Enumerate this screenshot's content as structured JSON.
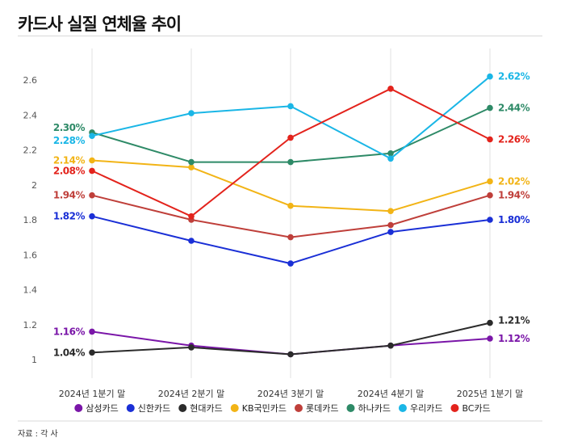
{
  "title": "카드사 실질 연체율 추이",
  "source": "자료 : 각 사",
  "chart_data": {
    "type": "line",
    "categories": [
      "2024년 1분기 말",
      "2024년 2분기 말",
      "2024년 3분기 말",
      "2024년 4분기 말",
      "2025년 1분기 말"
    ],
    "ylim": [
      1.0,
      2.6
    ],
    "yticks": [
      "1",
      "1.2",
      "1.4",
      "1.6",
      "1.8",
      "2",
      "2.2",
      "2.4",
      "2.6"
    ],
    "grid": "vertical",
    "legend_position": "bottom",
    "series": [
      {
        "name": "삼성카드",
        "color": "#7a16a8",
        "values": [
          1.16,
          1.08,
          1.03,
          1.08,
          1.12
        ],
        "first_label": "1.16%",
        "last_label": "1.12%"
      },
      {
        "name": "신한카드",
        "color": "#1a2fd6",
        "values": [
          1.82,
          1.68,
          1.55,
          1.73,
          1.8
        ],
        "first_label": "1.82%",
        "last_label": "1.80%"
      },
      {
        "name": "현대카드",
        "color": "#2b2b2b",
        "values": [
          1.04,
          1.07,
          1.03,
          1.08,
          1.21
        ],
        "first_label": "1.04%",
        "last_label": "1.21%"
      },
      {
        "name": "KB국민카드",
        "color": "#f2b416",
        "values": [
          2.14,
          2.1,
          1.88,
          1.85,
          2.02
        ],
        "first_label": "2.14%",
        "last_label": "2.02%"
      },
      {
        "name": "롯데카드",
        "color": "#bf3f3a",
        "values": [
          1.94,
          1.8,
          1.7,
          1.77,
          1.94
        ],
        "first_label": "1.94%",
        "last_label": "1.94%"
      },
      {
        "name": "하나카드",
        "color": "#2e8a67",
        "values": [
          2.3,
          2.13,
          2.13,
          2.18,
          2.44
        ],
        "first_label": "2.30%",
        "last_label": "2.44%"
      },
      {
        "name": "우리카드",
        "color": "#1ab6e6",
        "values": [
          2.28,
          2.41,
          2.45,
          2.15,
          2.62
        ],
        "first_label": "2.28%",
        "last_label": "2.62%"
      },
      {
        "name": "BC카드",
        "color": "#e3231c",
        "values": [
          2.08,
          1.82,
          2.27,
          2.55,
          2.26
        ],
        "first_label": "2.08%",
        "last_label": "2.26%"
      }
    ]
  }
}
